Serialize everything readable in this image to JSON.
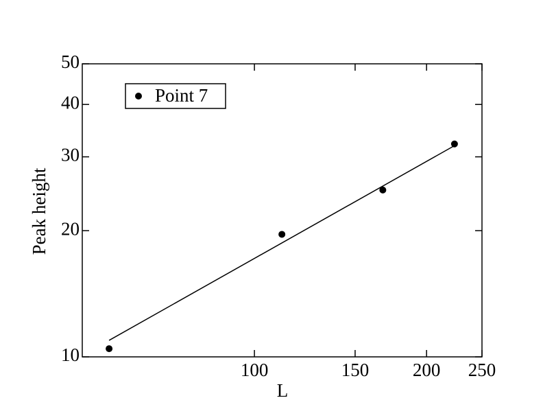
{
  "chart_data": {
    "type": "scatter",
    "xlabel": "L",
    "ylabel": "Peak height",
    "xscale": "log",
    "yscale": "log",
    "xlim": [
      50,
      250
    ],
    "ylim": [
      10,
      50
    ],
    "xticks": [
      100,
      150,
      200,
      250
    ],
    "yticks": [
      10,
      20,
      30,
      40,
      50
    ],
    "legend": "upper-left",
    "series": [
      {
        "name": "Point 7",
        "color": "#000000",
        "x": [
          55.7,
          111.7,
          167.7,
          223.8
        ],
        "values": [
          10.46,
          19.6,
          25.0,
          32.2
        ]
      },
      {
        "type": "line",
        "color": "#000000",
        "x": [
          55.7,
          223.8
        ],
        "values": [
          10.95,
          31.9
        ]
      }
    ]
  }
}
